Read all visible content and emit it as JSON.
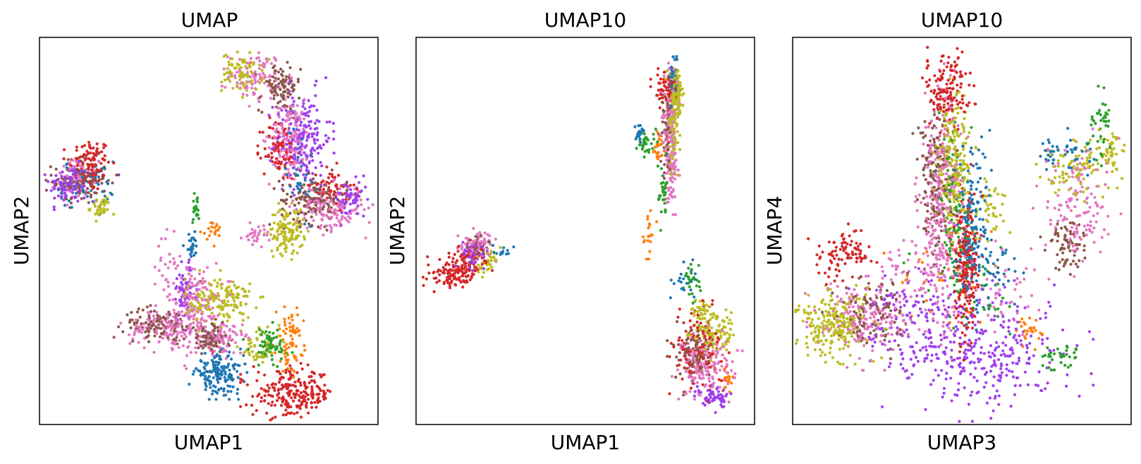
{
  "colors": {
    "blue": "#1f77b4",
    "orange": "#ff7f0e",
    "green": "#2ca02c",
    "red": "#d62728",
    "purple": "#a040ee",
    "brown": "#8c564b",
    "pink": "#e377c2",
    "olive": "#bcbd22"
  },
  "chart_data": [
    {
      "type": "scatter",
      "title": "UMAP",
      "xlabel": "UMAP1",
      "ylabel": "UMAP2",
      "xlim": [
        0,
        100
      ],
      "ylim": [
        0,
        100
      ],
      "ticks": "none",
      "grid": false,
      "legend": "none",
      "clusters": [
        {
          "color": "red",
          "cx": 15,
          "cy": 67,
          "sx": 3,
          "sy": 3.5,
          "n": 120
        },
        {
          "color": "purple",
          "cx": 9,
          "cy": 62,
          "sx": 3,
          "sy": 2.5,
          "n": 110
        },
        {
          "color": "brown",
          "cx": 12,
          "cy": 63,
          "sx": 4,
          "sy": 3,
          "n": 100
        },
        {
          "color": "blue",
          "cx": 14,
          "cy": 62,
          "sx": 4,
          "sy": 3,
          "n": 60
        },
        {
          "color": "olive",
          "cx": 18,
          "cy": 56,
          "sx": 1.5,
          "sy": 1.5,
          "n": 40
        },
        {
          "color": "pink",
          "cx": 11,
          "cy": 63,
          "sx": 3,
          "sy": 2.5,
          "n": 60
        },
        {
          "color": "olive",
          "cx": 60,
          "cy": 91,
          "sx": 3,
          "sy": 2.5,
          "n": 80
        },
        {
          "color": "pink",
          "cx": 64,
          "cy": 90,
          "sx": 4,
          "sy": 3,
          "n": 100
        },
        {
          "color": "brown",
          "cx": 71,
          "cy": 87,
          "sx": 3,
          "sy": 3,
          "n": 90
        },
        {
          "color": "purple",
          "cx": 78,
          "cy": 74,
          "sx": 4,
          "sy": 6,
          "n": 180
        },
        {
          "color": "red",
          "cx": 71,
          "cy": 71,
          "sx": 2.5,
          "sy": 4,
          "n": 90
        },
        {
          "color": "pink",
          "cx": 74,
          "cy": 74,
          "sx": 3,
          "sy": 5,
          "n": 160
        },
        {
          "color": "brown",
          "cx": 81,
          "cy": 58,
          "sx": 5,
          "sy": 3,
          "n": 140
        },
        {
          "color": "pink",
          "cx": 86,
          "cy": 56,
          "sx": 5,
          "sy": 3,
          "n": 150
        },
        {
          "color": "red",
          "cx": 86,
          "cy": 61,
          "sx": 3,
          "sy": 2.5,
          "n": 60
        },
        {
          "color": "purple",
          "cx": 92,
          "cy": 58,
          "sx": 2.5,
          "sy": 2.5,
          "n": 60
        },
        {
          "color": "olive",
          "cx": 73,
          "cy": 50,
          "sx": 2.5,
          "sy": 3,
          "n": 120
        },
        {
          "color": "blue",
          "cx": 77,
          "cy": 66,
          "sx": 2,
          "sy": 6,
          "n": 40
        },
        {
          "color": "olive",
          "cx": 53,
          "cy": 32,
          "sx": 5,
          "sy": 3,
          "n": 170
        },
        {
          "color": "pink",
          "cx": 46,
          "cy": 30,
          "sx": 4,
          "sy": 6,
          "n": 180
        },
        {
          "color": "brown",
          "cx": 35,
          "cy": 26,
          "sx": 5,
          "sy": 2,
          "n": 100
        },
        {
          "color": "pink",
          "cx": 37,
          "cy": 25,
          "sx": 5,
          "sy": 2.5,
          "n": 110
        },
        {
          "color": "brown",
          "cx": 50,
          "cy": 22,
          "sx": 3,
          "sy": 2,
          "n": 90
        },
        {
          "color": "pink",
          "cx": 54,
          "cy": 22,
          "sx": 3,
          "sy": 2,
          "n": 80
        },
        {
          "color": "purple",
          "cx": 43,
          "cy": 34,
          "sx": 2,
          "sy": 4,
          "n": 60
        },
        {
          "color": "orange",
          "cx": 74,
          "cy": 22,
          "sx": 2,
          "sy": 4,
          "n": 70
        },
        {
          "color": "green",
          "cx": 68,
          "cy": 20,
          "sx": 3,
          "sy": 2.5,
          "n": 70
        },
        {
          "color": "olive",
          "cx": 65,
          "cy": 20,
          "sx": 3,
          "sy": 2.5,
          "n": 50
        },
        {
          "color": "blue",
          "cx": 53,
          "cy": 13,
          "sx": 3.5,
          "sy": 2.5,
          "n": 160
        },
        {
          "color": "red",
          "cx": 75,
          "cy": 8,
          "sx": 6,
          "sy": 3,
          "n": 230
        },
        {
          "color": "blue",
          "cx": 45,
          "cy": 46,
          "sx": 1,
          "sy": 1.5,
          "n": 25
        },
        {
          "color": "orange",
          "cx": 51,
          "cy": 50,
          "sx": 1.5,
          "sy": 1.5,
          "n": 20
        },
        {
          "color": "green",
          "cx": 46,
          "cy": 56,
          "sx": 0.8,
          "sy": 2,
          "n": 20
        },
        {
          "color": "pink",
          "cx": 38,
          "cy": 40,
          "sx": 1.5,
          "sy": 4,
          "n": 30
        },
        {
          "color": "pink",
          "cx": 64,
          "cy": 49,
          "sx": 2,
          "sy": 1.2,
          "n": 30
        }
      ]
    },
    {
      "type": "scatter",
      "title": "UMAP10",
      "xlabel": "UMAP1",
      "ylabel": "UMAP2",
      "xlim": [
        0,
        100
      ],
      "ylim": [
        0,
        100
      ],
      "ticks": "none",
      "grid": false,
      "legend": "none",
      "clusters": [
        {
          "color": "red",
          "cx": 10,
          "cy": 39,
          "sx": 3.5,
          "sy": 1.8,
          "n": 100
        },
        {
          "color": "red",
          "cx": 16,
          "cy": 42,
          "sx": 2.5,
          "sy": 2.5,
          "n": 80
        },
        {
          "color": "pink",
          "cx": 18,
          "cy": 46,
          "sx": 2.2,
          "sy": 2,
          "n": 80
        },
        {
          "color": "purple",
          "cx": 17,
          "cy": 45,
          "sx": 2,
          "sy": 2,
          "n": 60
        },
        {
          "color": "olive",
          "cx": 21,
          "cy": 42,
          "sx": 1.5,
          "sy": 2,
          "n": 40
        },
        {
          "color": "brown",
          "cx": 19,
          "cy": 46,
          "sx": 1.5,
          "sy": 1.5,
          "n": 30
        },
        {
          "color": "blue",
          "cx": 25,
          "cy": 45,
          "sx": 2,
          "sy": 0.7,
          "n": 12
        },
        {
          "color": "red",
          "cx": 74,
          "cy": 87,
          "sx": 1.8,
          "sy": 2,
          "n": 60
        },
        {
          "color": "olive",
          "cx": 77,
          "cy": 85,
          "sx": 0.8,
          "sy": 3,
          "n": 90
        },
        {
          "color": "pink",
          "cx": 75,
          "cy": 75,
          "sx": 1.1,
          "sy": 8,
          "n": 150
        },
        {
          "color": "olive",
          "cx": 76,
          "cy": 80,
          "sx": 0.9,
          "sy": 6,
          "n": 120
        },
        {
          "color": "blue",
          "cx": 76,
          "cy": 90,
          "sx": 0.8,
          "sy": 3,
          "n": 40
        },
        {
          "color": "brown",
          "cx": 74,
          "cy": 78,
          "sx": 1,
          "sy": 6,
          "n": 60
        },
        {
          "color": "green",
          "cx": 68,
          "cy": 73,
          "sx": 1.5,
          "sy": 1.5,
          "n": 30
        },
        {
          "color": "blue",
          "cx": 66,
          "cy": 75,
          "sx": 0.7,
          "sy": 1.5,
          "n": 20
        },
        {
          "color": "orange",
          "cx": 72,
          "cy": 72,
          "sx": 1,
          "sy": 2,
          "n": 25
        },
        {
          "color": "green",
          "cx": 73,
          "cy": 60,
          "sx": 0.8,
          "sy": 4,
          "n": 30
        },
        {
          "color": "orange",
          "cx": 69,
          "cy": 50,
          "sx": 1,
          "sy": 3,
          "n": 20
        },
        {
          "color": "pink",
          "cx": 75,
          "cy": 64,
          "sx": 0.8,
          "sy": 3,
          "n": 30
        },
        {
          "color": "red",
          "cx": 84,
          "cy": 19,
          "sx": 3.5,
          "sy": 5,
          "n": 130
        },
        {
          "color": "pink",
          "cx": 86,
          "cy": 15,
          "sx": 4,
          "sy": 4,
          "n": 150
        },
        {
          "color": "brown",
          "cx": 82,
          "cy": 18,
          "sx": 3,
          "sy": 4,
          "n": 100
        },
        {
          "color": "olive",
          "cx": 88,
          "cy": 24,
          "sx": 3,
          "sy": 3,
          "n": 100
        },
        {
          "color": "purple",
          "cx": 88,
          "cy": 7,
          "sx": 2.5,
          "sy": 1.5,
          "n": 60
        },
        {
          "color": "orange",
          "cx": 92,
          "cy": 12,
          "sx": 1,
          "sy": 2,
          "n": 20
        },
        {
          "color": "green",
          "cx": 81,
          "cy": 37,
          "sx": 1.5,
          "sy": 3,
          "n": 25
        },
        {
          "color": "blue",
          "cx": 79,
          "cy": 38,
          "sx": 2,
          "sy": 2.5,
          "n": 20
        },
        {
          "color": "olive",
          "cx": 84,
          "cy": 29,
          "sx": 1.5,
          "sy": 2,
          "n": 30
        }
      ]
    },
    {
      "type": "scatter",
      "title": "UMAP10",
      "xlabel": "UMAP3",
      "ylabel": "UMAP4",
      "xlim": [
        0,
        100
      ],
      "ylim": [
        0,
        100
      ],
      "ticks": "none",
      "grid": false,
      "legend": "none",
      "clusters": [
        {
          "color": "red",
          "cx": 46,
          "cy": 87,
          "sx": 3.5,
          "sy": 5,
          "n": 140
        },
        {
          "color": "pink",
          "cx": 44,
          "cy": 57,
          "sx": 3,
          "sy": 14,
          "n": 330
        },
        {
          "color": "olive",
          "cx": 48,
          "cy": 66,
          "sx": 2.5,
          "sy": 9,
          "n": 220
        },
        {
          "color": "brown",
          "cx": 42,
          "cy": 63,
          "sx": 2.5,
          "sy": 9,
          "n": 140
        },
        {
          "color": "green",
          "cx": 48,
          "cy": 55,
          "sx": 2.5,
          "sy": 11,
          "n": 110
        },
        {
          "color": "blue",
          "cx": 53,
          "cy": 50,
          "sx": 2.2,
          "sy": 10,
          "n": 170
        },
        {
          "color": "red",
          "cx": 51,
          "cy": 42,
          "sx": 2,
          "sy": 10,
          "n": 230
        },
        {
          "color": "olive",
          "cx": 59,
          "cy": 56,
          "sx": 2,
          "sy": 4,
          "n": 40
        },
        {
          "color": "purple",
          "cx": 55,
          "cy": 19,
          "sx": 13,
          "sy": 7,
          "n": 330
        },
        {
          "color": "olive",
          "cx": 12,
          "cy": 26,
          "sx": 6,
          "sy": 4,
          "n": 240
        },
        {
          "color": "pink",
          "cx": 21,
          "cy": 27,
          "sx": 7,
          "sy": 5,
          "n": 170
        },
        {
          "color": "brown",
          "cx": 24,
          "cy": 30,
          "sx": 6,
          "sy": 5,
          "n": 110
        },
        {
          "color": "red",
          "cx": 15,
          "cy": 44,
          "sx": 4,
          "sy": 3,
          "n": 90
        },
        {
          "color": "purple",
          "cx": 33,
          "cy": 28,
          "sx": 7,
          "sy": 5,
          "n": 100
        },
        {
          "color": "olive",
          "cx": 85,
          "cy": 66,
          "sx": 5,
          "sy": 4,
          "n": 90
        },
        {
          "color": "pink",
          "cx": 84,
          "cy": 58,
          "sx": 5,
          "sy": 8,
          "n": 130
        },
        {
          "color": "brown",
          "cx": 81,
          "cy": 46,
          "sx": 3,
          "sy": 4,
          "n": 70
        },
        {
          "color": "blue",
          "cx": 80,
          "cy": 70,
          "sx": 4,
          "sy": 2.5,
          "n": 45
        },
        {
          "color": "green",
          "cx": 91,
          "cy": 77,
          "sx": 2,
          "sy": 4,
          "n": 40
        },
        {
          "color": "olive",
          "cx": 94,
          "cy": 70,
          "sx": 2,
          "sy": 2.5,
          "n": 40
        },
        {
          "color": "orange",
          "cx": 70,
          "cy": 24,
          "sx": 1.5,
          "sy": 2,
          "n": 25
        },
        {
          "color": "green",
          "cx": 79,
          "cy": 18,
          "sx": 3,
          "sy": 1.5,
          "n": 35
        },
        {
          "color": "blue",
          "cx": 59,
          "cy": 40,
          "sx": 4,
          "sy": 4,
          "n": 40
        },
        {
          "color": "orange",
          "cx": 45,
          "cy": 40,
          "sx": 8,
          "sy": 8,
          "n": 35
        },
        {
          "color": "green",
          "cx": 50,
          "cy": 35,
          "sx": 9,
          "sy": 8,
          "n": 35
        },
        {
          "color": "pink",
          "cx": 60,
          "cy": 34,
          "sx": 7,
          "sy": 6,
          "n": 50
        },
        {
          "color": "pink",
          "cx": 34,
          "cy": 40,
          "sx": 5,
          "sy": 4,
          "n": 40
        }
      ]
    }
  ]
}
